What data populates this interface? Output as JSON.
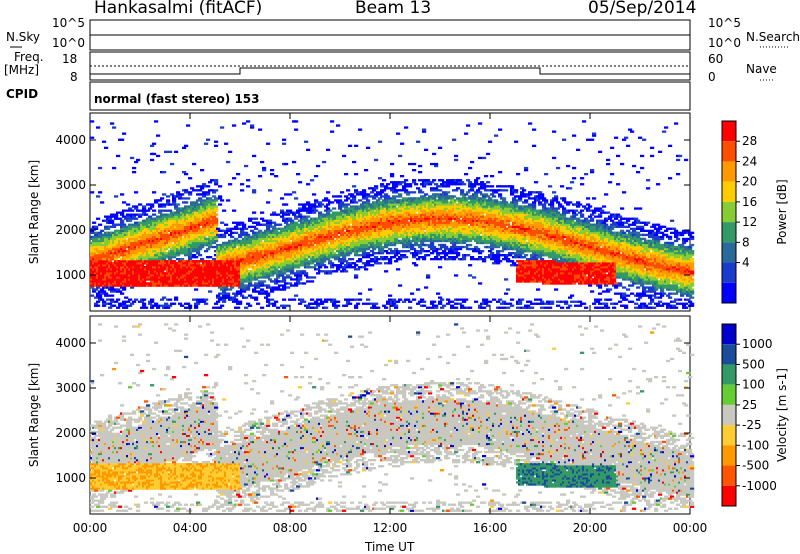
{
  "header": {
    "station": "Hankasalmi (fitACF)",
    "beam": "Beam 13",
    "date": "05/Sep/2014"
  },
  "status_panels": {
    "nsky_label": "N.Sky",
    "nsky_top": "10^5",
    "nsky_bottom": "10^0",
    "nsearch_label": "N.Search",
    "nsearch_top": "10^5",
    "nsearch_bottom": "10^0",
    "freq_label_1": "Freq.",
    "freq_label_2": "[MHz]",
    "freq_ticks": [
      "18",
      "8"
    ],
    "nave_label": "Nave",
    "nave_ticks": [
      "60",
      "0"
    ],
    "cpid_label": "CPID",
    "cpid_value": "normal (fast stereo) 153"
  },
  "chart_data": [
    {
      "type": "heatmap",
      "name": "power",
      "ylabel": "Slant Range [km]",
      "yticks": [
        "4000",
        "3000",
        "2000",
        "1000"
      ],
      "ylim": [
        200,
        4600
      ],
      "xlim": [
        0,
        24
      ],
      "colorbar": {
        "label": "Power [dB]",
        "ticks": [
          "28",
          "24",
          "20",
          "16",
          "12",
          "8",
          "4"
        ],
        "colors": [
          "#ff0000",
          "#ff4d00",
          "#ff9900",
          "#ffcc00",
          "#88cc33",
          "#339966",
          "#2a6a9a",
          "#1a3bcc",
          "#0000ff"
        ]
      },
      "notes": "Dense echo band ~1000-2600 km, strongest (red) near 0-6 UT at 800-1200 km and 18-21 UT at 800-1200 km"
    },
    {
      "type": "heatmap",
      "name": "velocity",
      "ylabel": "Slant Range [km]",
      "yticks": [
        "4000",
        "3000",
        "2000",
        "1000"
      ],
      "ylim": [
        200,
        4600
      ],
      "xlim": [
        0,
        24
      ],
      "colorbar": {
        "label": "Velocity [m s-1]",
        "ticks": [
          "1000",
          "500",
          "100",
          "25",
          "-25",
          "-100",
          "-500",
          "-1000"
        ],
        "colors": [
          "#0000cc",
          "#1a4d99",
          "#339966",
          "#66cc33",
          "#c8c8c0",
          "#ffcc33",
          "#ff9900",
          "#ff5500",
          "#ff0000"
        ]
      },
      "notes": "Mostly ground scatter (grey) 1000-2600 km; orange/yellow negative velocities 0-3 UT near 800-1800 km; green positive 17-21 UT near 1000-1500 km"
    }
  ],
  "x_axis": {
    "ticks": [
      "00:00",
      "04:00",
      "08:00",
      "12:00",
      "16:00",
      "20:00",
      "00:00"
    ],
    "label": "Time UT"
  }
}
